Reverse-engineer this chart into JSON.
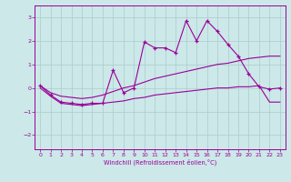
{
  "xlabel": "Windchill (Refroidissement éolien,°C)",
  "bg_color": "#cce8e8",
  "grid_color": "#aacccc",
  "line_color": "#990099",
  "xlim": [
    -0.5,
    23.5
  ],
  "ylim": [
    -2.6,
    3.5
  ],
  "xticks": [
    0,
    1,
    2,
    3,
    4,
    5,
    6,
    7,
    8,
    9,
    10,
    11,
    12,
    13,
    14,
    15,
    16,
    17,
    18,
    19,
    20,
    21,
    22,
    23
  ],
  "yticks": [
    -2,
    -1,
    0,
    1,
    2,
    3
  ],
  "main_x": [
    0,
    1,
    2,
    3,
    4,
    5,
    6,
    7,
    8,
    9,
    10,
    11,
    12,
    13,
    14,
    15,
    16,
    17,
    18,
    19,
    20,
    21,
    22,
    23
  ],
  "main_y": [
    0.1,
    -0.3,
    -0.6,
    -0.65,
    -0.7,
    -0.65,
    -0.65,
    0.75,
    -0.2,
    0.0,
    1.95,
    1.7,
    1.7,
    1.5,
    2.85,
    2.0,
    2.85,
    2.4,
    1.85,
    1.35,
    0.6,
    0.05,
    -0.05,
    0.0
  ],
  "upper_x": [
    0,
    1,
    2,
    3,
    4,
    5,
    6,
    7,
    8,
    9,
    10,
    11,
    12,
    13,
    14,
    15,
    16,
    17,
    18,
    19,
    20,
    21,
    22,
    23
  ],
  "upper_y": [
    0.1,
    -0.2,
    -0.35,
    -0.4,
    -0.45,
    -0.4,
    -0.3,
    -0.15,
    0.0,
    0.1,
    0.25,
    0.4,
    0.5,
    0.6,
    0.7,
    0.8,
    0.9,
    1.0,
    1.05,
    1.15,
    1.25,
    1.3,
    1.35,
    1.35
  ],
  "lower_x": [
    0,
    1,
    2,
    3,
    4,
    5,
    6,
    7,
    8,
    9,
    10,
    11,
    12,
    13,
    14,
    15,
    16,
    17,
    18,
    19,
    20,
    21,
    22,
    23
  ],
  "lower_y": [
    0.0,
    -0.35,
    -0.65,
    -0.7,
    -0.75,
    -0.7,
    -0.65,
    -0.6,
    -0.55,
    -0.45,
    -0.4,
    -0.3,
    -0.25,
    -0.2,
    -0.15,
    -0.1,
    -0.05,
    0.0,
    0.0,
    0.05,
    0.05,
    0.1,
    -0.6,
    -0.6
  ]
}
